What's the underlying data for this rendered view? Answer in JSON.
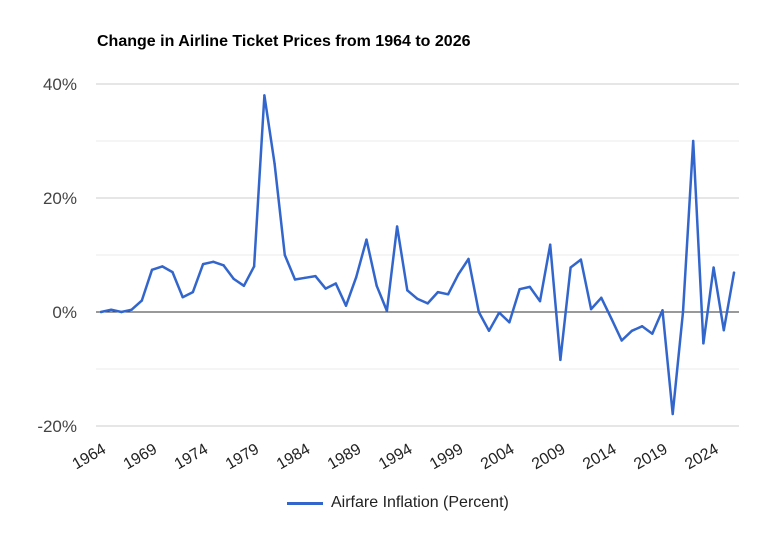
{
  "chart_data": {
    "type": "line",
    "title": "Change in Airline Ticket Prices from 1964 to 2026",
    "xlabel": "",
    "ylabel": "",
    "ylim": [
      -20,
      40
    ],
    "yticks": [
      -20,
      0,
      20,
      40
    ],
    "ytick_labels": [
      "-20%",
      "0%",
      "20%",
      "40%"
    ],
    "xticks": [
      1964,
      1969,
      1974,
      1979,
      1984,
      1989,
      1994,
      1999,
      2004,
      2009,
      2014,
      2019,
      2024
    ],
    "xtick_labels": [
      "1964",
      "1969",
      "1974",
      "1979",
      "1984",
      "1989",
      "1994",
      "1999",
      "2004",
      "2009",
      "2014",
      "2019",
      "2024"
    ],
    "legend_position": "bottom",
    "color": "#3366cc",
    "series": [
      {
        "name": "Airfare Inflation (Percent)",
        "x": [
          1964,
          1965,
          1966,
          1967,
          1968,
          1969,
          1970,
          1971,
          1972,
          1973,
          1974,
          1975,
          1976,
          1977,
          1978,
          1979,
          1980,
          1981,
          1982,
          1983,
          1984,
          1985,
          1986,
          1987,
          1988,
          1989,
          1990,
          1991,
          1992,
          1993,
          1994,
          1995,
          1996,
          1997,
          1998,
          1999,
          2000,
          2001,
          2002,
          2003,
          2004,
          2005,
          2006,
          2007,
          2008,
          2009,
          2010,
          2011,
          2012,
          2013,
          2014,
          2015,
          2016,
          2017,
          2018,
          2019,
          2020,
          2021,
          2022,
          2023,
          2024,
          2025,
          2026
        ],
        "values": [
          0,
          0.4,
          0,
          0.4,
          2,
          7.4,
          8,
          7,
          2.6,
          3.5,
          8.4,
          8.8,
          8.2,
          5.8,
          4.6,
          8,
          38,
          26,
          10,
          5.7,
          6,
          6.3,
          4.1,
          5,
          1.1,
          6.1,
          12.7,
          4.6,
          0.2,
          15,
          3.8,
          2.3,
          1.5,
          3.5,
          3.1,
          6.6,
          9.3,
          0,
          -3.3,
          -0.1,
          -1.8,
          4,
          4.4,
          1.9,
          11.8,
          -8.4,
          7.8,
          9.2,
          0.5,
          2.5,
          -1.2,
          -5,
          -3.3,
          -2.5,
          -3.8,
          0.3,
          -17.9,
          0,
          30,
          -5.5,
          7.8,
          -3.2,
          6.9
        ]
      }
    ]
  }
}
